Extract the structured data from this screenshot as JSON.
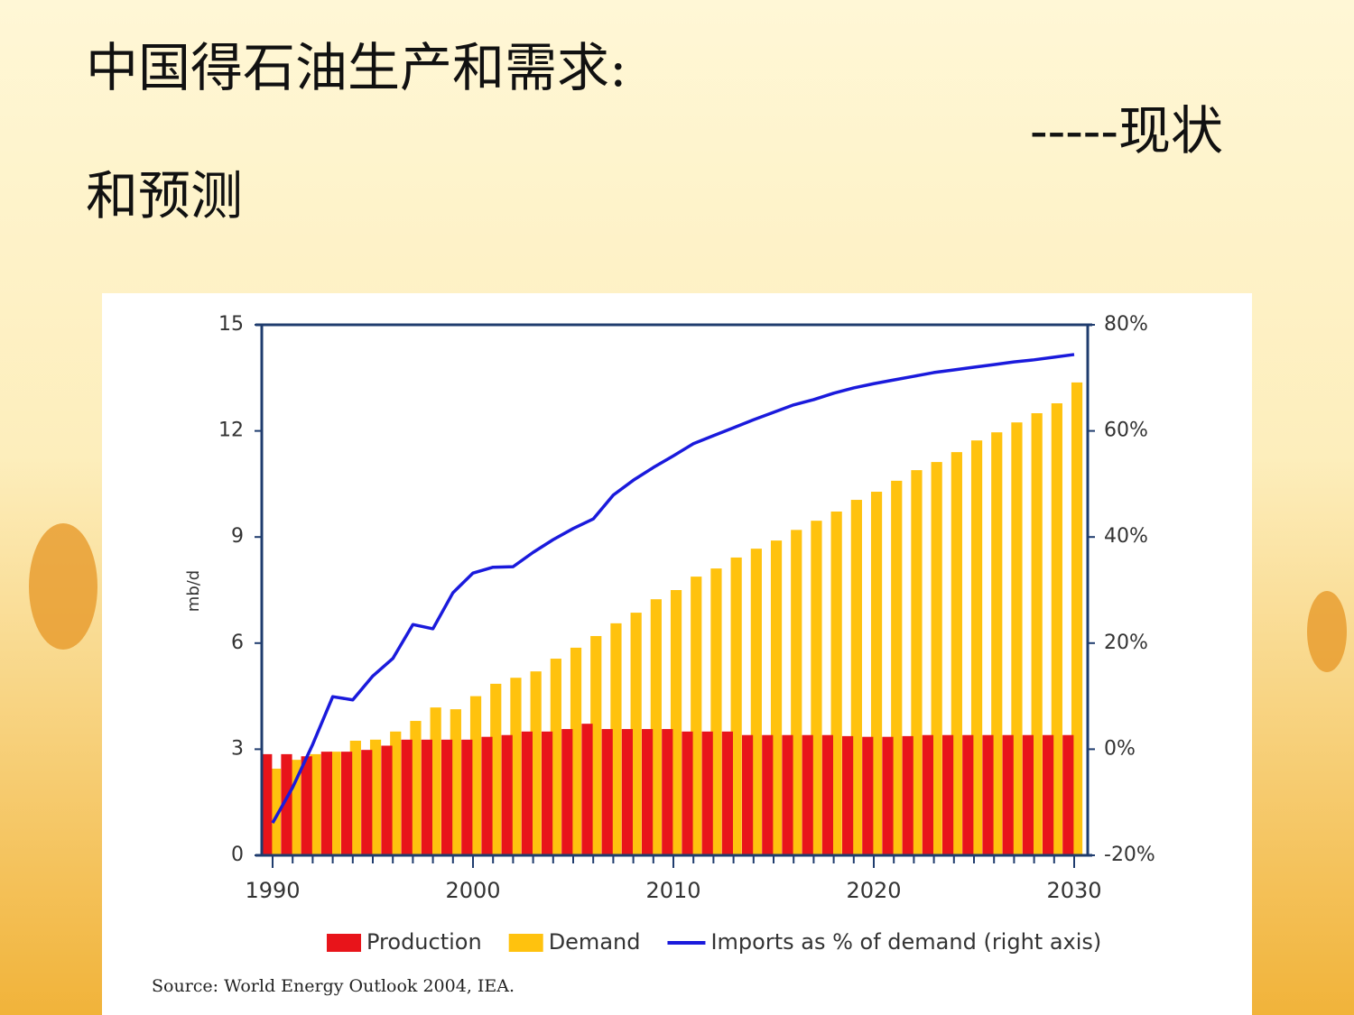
{
  "chart_data": {
    "type": "bar",
    "title": "中国得石油生产和需求:",
    "subtitle": [
      "-----现状",
      "和预测"
    ],
    "ylabel": "mb/d",
    "source": "Source: World Energy Outlook 2004, IEA.",
    "x": [
      1990,
      1991,
      1992,
      1993,
      1994,
      1995,
      1996,
      1997,
      1998,
      1999,
      2000,
      2001,
      2002,
      2003,
      2004,
      2005,
      2006,
      2007,
      2008,
      2009,
      2010,
      2011,
      2012,
      2013,
      2014,
      2015,
      2016,
      2017,
      2018,
      2019,
      2020,
      2021,
      2022,
      2023,
      2024,
      2025,
      2026,
      2027,
      2028,
      2029,
      2030
    ],
    "xlim": [
      1990,
      2030
    ],
    "xticks": [
      1990,
      2000,
      2010,
      2020,
      2030
    ],
    "ylim": [
      0,
      15
    ],
    "yticks": [
      0,
      3,
      6,
      9,
      12,
      15
    ],
    "y2lim": [
      -20,
      80
    ],
    "y2ticks": [
      {
        "value": -20,
        "label": "-20%"
      },
      {
        "value": 0,
        "label": "0%"
      },
      {
        "value": 20,
        "label": "20%"
      },
      {
        "value": 40,
        "label": "40%"
      },
      {
        "value": 60,
        "label": "60%"
      },
      {
        "value": 80,
        "label": "80%"
      }
    ],
    "series": [
      {
        "name": "Production",
        "type": "bar",
        "color": "#e8141a",
        "values": [
          2.86,
          2.86,
          2.8,
          2.93,
          2.93,
          2.98,
          3.1,
          3.27,
          3.27,
          3.27,
          3.27,
          3.35,
          3.4,
          3.5,
          3.5,
          3.57,
          3.72,
          3.57,
          3.57,
          3.57,
          3.57,
          3.5,
          3.5,
          3.5,
          3.4,
          3.4,
          3.4,
          3.4,
          3.4,
          3.37,
          3.35,
          3.35,
          3.37,
          3.4,
          3.4,
          3.4,
          3.4,
          3.4,
          3.4,
          3.4,
          3.4
        ]
      },
      {
        "name": "Demand",
        "type": "bar",
        "color": "#ffc20e",
        "values": [
          2.45,
          2.7,
          2.86,
          2.93,
          3.24,
          3.27,
          3.5,
          3.8,
          4.18,
          4.13,
          4.5,
          4.85,
          5.02,
          5.2,
          5.56,
          5.87,
          6.2,
          6.56,
          6.86,
          7.24,
          7.5,
          7.88,
          8.11,
          8.42,
          8.67,
          8.9,
          9.2,
          9.46,
          9.72,
          10.05,
          10.28,
          10.59,
          10.89,
          11.12,
          11.4,
          11.73,
          11.96,
          12.24,
          12.5,
          12.78,
          13.37
        ]
      },
      {
        "name": "Imports as % of demand (right axis)",
        "type": "line",
        "axis": "y2",
        "color": "#1a1adc",
        "values": [
          -13.9,
          -7.2,
          0.9,
          9.9,
          9.3,
          13.8,
          17.1,
          23.5,
          22.7,
          29.5,
          33.2,
          34.3,
          34.4,
          37.1,
          39.5,
          41.6,
          43.4,
          47.9,
          50.7,
          53.1,
          55.3,
          57.6,
          59.1,
          60.6,
          62.1,
          63.5,
          64.9,
          65.9,
          67.1,
          68.1,
          68.9,
          69.6,
          70.3,
          71,
          71.5,
          72,
          72.5,
          73,
          73.4,
          73.9,
          74.4
        ]
      }
    ]
  }
}
